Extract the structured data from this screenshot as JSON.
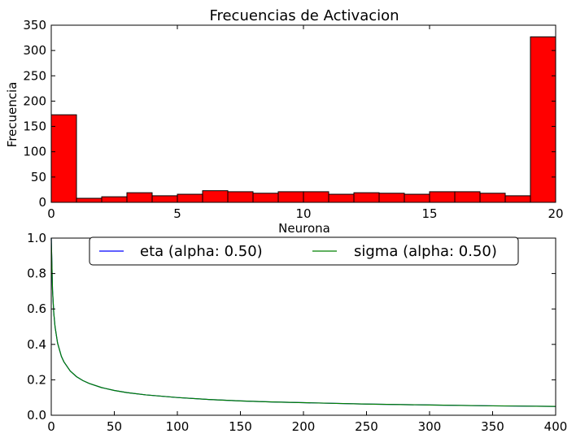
{
  "chart_data": [
    {
      "type": "bar",
      "title": "Frecuencias de Activacion",
      "xlabel": "Neurona",
      "ylabel": "Frecuencia",
      "xlim": [
        0,
        20
      ],
      "ylim": [
        0,
        350
      ],
      "xticks": [
        "0",
        "5",
        "10",
        "15",
        "20"
      ],
      "yticks": [
        "0",
        "50",
        "100",
        "150",
        "200",
        "250",
        "300",
        "350"
      ],
      "bin_edges": [
        0,
        1,
        2,
        3,
        4,
        5,
        6,
        7,
        8,
        9,
        10,
        11,
        12,
        13,
        14,
        15,
        16,
        17,
        18,
        19,
        20
      ],
      "values": [
        173,
        8,
        11,
        19,
        13,
        16,
        23,
        21,
        18,
        21,
        21,
        16,
        19,
        18,
        16,
        21,
        21,
        18,
        13,
        327
      ],
      "bar_color": "#ff0000",
      "grid": false
    },
    {
      "type": "line",
      "title": "",
      "xlabel": "",
      "ylabel": "",
      "xlim": [
        0,
        400
      ],
      "ylim": [
        0,
        1.0
      ],
      "xticks": [
        "0",
        "50",
        "100",
        "150",
        "200",
        "250",
        "300",
        "350",
        "400"
      ],
      "yticks": [
        "0.0",
        "0.2",
        "0.4",
        "0.6",
        "0.8",
        "1.0"
      ],
      "legend_position": "top-center",
      "grid": false,
      "x": [
        0,
        1,
        2,
        3,
        5,
        8,
        10,
        15,
        20,
        25,
        30,
        40,
        50,
        60,
        75,
        100,
        125,
        150,
        175,
        200,
        250,
        300,
        350,
        400
      ],
      "series": [
        {
          "name": "eta (alpha: 0.50)",
          "color": "#0000ff",
          "values": [
            1.0,
            0.707,
            0.577,
            0.5,
            0.408,
            0.333,
            0.302,
            0.25,
            0.218,
            0.196,
            0.18,
            0.156,
            0.14,
            0.128,
            0.115,
            0.1,
            0.089,
            0.081,
            0.075,
            0.071,
            0.063,
            0.058,
            0.053,
            0.05
          ]
        },
        {
          "name": "sigma (alpha: 0.50)",
          "color": "#008000",
          "values": [
            1.0,
            0.707,
            0.577,
            0.5,
            0.408,
            0.333,
            0.302,
            0.25,
            0.218,
            0.196,
            0.18,
            0.156,
            0.14,
            0.128,
            0.115,
            0.1,
            0.089,
            0.081,
            0.075,
            0.071,
            0.063,
            0.058,
            0.053,
            0.05
          ]
        }
      ]
    }
  ]
}
